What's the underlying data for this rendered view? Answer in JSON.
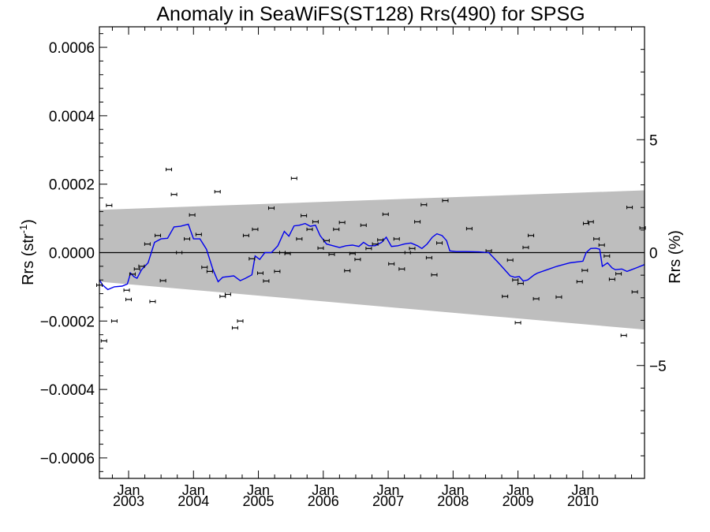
{
  "chart_data": {
    "type": "scatter",
    "title": "Anomaly in SeaWiFS(ST128) Rrs(490) for SPSG",
    "ylabel": "Rrs (str",
    "ylabel_sup": "-1",
    "ylabel_close": ")",
    "y2label": "Rrs (%)",
    "xlim": [
      2002.55,
      2010.95
    ],
    "ylim": [
      -0.00066,
      0.00066
    ],
    "y2lim": [
      -10,
      10
    ],
    "grid": false,
    "x_ticks": [
      {
        "x": 2003.0,
        "month": "Jan",
        "year": "2003"
      },
      {
        "x": 2004.0,
        "month": "Jan",
        "year": "2004"
      },
      {
        "x": 2005.0,
        "month": "Jan",
        "year": "2005"
      },
      {
        "x": 2006.0,
        "month": "Jan",
        "year": "2006"
      },
      {
        "x": 2007.0,
        "month": "Jan",
        "year": "2007"
      },
      {
        "x": 2008.0,
        "month": "Jan",
        "year": "2008"
      },
      {
        "x": 2009.0,
        "month": "Jan",
        "year": "2009"
      },
      {
        "x": 2010.0,
        "month": "Jan",
        "year": "2010"
      }
    ],
    "y_ticks": [
      {
        "v": 0.0006,
        "label": "0.0006"
      },
      {
        "v": 0.0004,
        "label": "0.0004"
      },
      {
        "v": 0.0002,
        "label": "0.0002"
      },
      {
        "v": 0.0,
        "label": "0.0000"
      },
      {
        "v": -0.0002,
        "label": "−0.0002"
      },
      {
        "v": -0.0004,
        "label": "−0.0004"
      },
      {
        "v": -0.0006,
        "label": "−0.0006"
      }
    ],
    "y2_ticks": [
      {
        "v": 5,
        "label": "5"
      },
      {
        "v": 0,
        "label": "0"
      },
      {
        "v": -5,
        "label": "−5"
      }
    ],
    "uncertainty_band": {
      "x": [
        2002.55,
        2010.95
      ],
      "upper": [
        0.000125,
        0.000182
      ],
      "lower": [
        -8.5e-05,
        -0.000225
      ],
      "color": "#bebebe"
    },
    "points": [
      [
        2002.55,
        -9.5e-05
      ],
      [
        2002.62,
        -0.000258
      ],
      [
        2002.7,
        0.000138
      ],
      [
        2002.78,
        -0.0002
      ],
      [
        2002.97,
        -0.00011
      ],
      [
        2003.0,
        -0.000137
      ],
      [
        2003.06,
        -6.3e-05
      ],
      [
        2003.13,
        -4.8e-05
      ],
      [
        2003.2,
        -4e-05
      ],
      [
        2003.29,
        2.5e-05
      ],
      [
        2003.37,
        -0.000143
      ],
      [
        2003.45,
        5e-05
      ],
      [
        2003.53,
        -8.2e-05
      ],
      [
        2003.62,
        0.000243
      ],
      [
        2003.7,
        0.00017
      ],
      [
        2003.78,
        0.0
      ],
      [
        2003.9,
        4e-05
      ],
      [
        2003.98,
        0.00011
      ],
      [
        2004.08,
        5.3e-05
      ],
      [
        2004.17,
        -4.3e-05
      ],
      [
        2004.25,
        -5.5e-05
      ],
      [
        2004.37,
        0.000178
      ],
      [
        2004.45,
        -0.000128
      ],
      [
        2004.53,
        -0.000122
      ],
      [
        2004.64,
        -0.00022
      ],
      [
        2004.72,
        -0.0002
      ],
      [
        2004.81,
        5e-05
      ],
      [
        2004.9,
        -1.8e-05
      ],
      [
        2004.95,
        6.8e-05
      ],
      [
        2005.03,
        -6e-05
      ],
      [
        2005.12,
        -8.3e-05
      ],
      [
        2005.2,
        0.00013
      ],
      [
        2005.29,
        -5.5e-05
      ],
      [
        2005.37,
        0.0
      ],
      [
        2005.45,
        -3e-06
      ],
      [
        2005.55,
        0.000217
      ],
      [
        2005.63,
        4e-05
      ],
      [
        2005.7,
        0.000108
      ],
      [
        2005.79,
        6.8e-05
      ],
      [
        2005.88,
        9e-05
      ],
      [
        2005.96,
        1.3e-05
      ],
      [
        2006.05,
        3.5e-05
      ],
      [
        2006.13,
        -5e-06
      ],
      [
        2006.2,
        6.8e-05
      ],
      [
        2006.29,
        8.8e-05
      ],
      [
        2006.37,
        -5.3e-05
      ],
      [
        2006.45,
        -3e-06
      ],
      [
        2006.53,
        -2e-05
      ],
      [
        2006.62,
        8e-05
      ],
      [
        2006.7,
        1.2e-05
      ],
      [
        2006.8,
        2.5e-05
      ],
      [
        2006.88,
        3.7e-05
      ],
      [
        2006.96,
        0.000112
      ],
      [
        2007.05,
        -3.3e-05
      ],
      [
        2007.13,
        4e-05
      ],
      [
        2007.21,
        -4.8e-05
      ],
      [
        2007.3,
        0.0
      ],
      [
        2007.37,
        1.2e-05
      ],
      [
        2007.45,
        9e-05
      ],
      [
        2007.55,
        0.00014
      ],
      [
        2007.63,
        -1.5e-05
      ],
      [
        2007.71,
        -6.5e-05
      ],
      [
        2007.79,
        2.8e-05
      ],
      [
        2007.88,
        0.000152
      ],
      [
        2008.25,
        7e-05
      ],
      [
        2008.55,
        5e-06
      ],
      [
        2008.8,
        -0.000128
      ],
      [
        2008.88,
        -2.2e-05
      ],
      [
        2008.96,
        -8e-05
      ],
      [
        2009.0,
        -0.000205
      ],
      [
        2009.04,
        -9e-05
      ],
      [
        2009.12,
        1.5e-05
      ],
      [
        2009.2,
        5e-05
      ],
      [
        2009.28,
        -0.000135
      ],
      [
        2009.63,
        -0.00013
      ],
      [
        2009.95,
        -8.5e-05
      ],
      [
        2010.03,
        -5.2e-05
      ],
      [
        2010.05,
        8.5e-05
      ],
      [
        2010.12,
        9e-05
      ],
      [
        2010.21,
        4e-05
      ],
      [
        2010.29,
        2.2e-05
      ],
      [
        2010.37,
        -1e-05
      ],
      [
        2010.45,
        -7.8e-05
      ],
      [
        2010.55,
        -6.2e-05
      ],
      [
        2010.63,
        -0.000242
      ],
      [
        2010.72,
        0.000132
      ],
      [
        2010.8,
        -0.000115
      ],
      [
        2010.92,
        7.2e-05
      ]
    ],
    "smooth_line": {
      "color": "#0000ee",
      "points": [
        [
          2002.55,
          -8e-05
        ],
        [
          2002.6,
          -9.5e-05
        ],
        [
          2002.68,
          -0.000108
        ],
        [
          2002.78,
          -0.0001
        ],
        [
          2002.9,
          -9.8e-05
        ],
        [
          2002.98,
          -9.2e-05
        ],
        [
          2003.03,
          -6e-05
        ],
        [
          2003.08,
          -7e-05
        ],
        [
          2003.13,
          -7.5e-05
        ],
        [
          2003.2,
          -5e-05
        ],
        [
          2003.3,
          -3e-05
        ],
        [
          2003.4,
          3e-05
        ],
        [
          2003.5,
          4e-05
        ],
        [
          2003.6,
          4.2e-05
        ],
        [
          2003.7,
          7.5e-05
        ],
        [
          2003.8,
          7.7e-05
        ],
        [
          2003.92,
          8.3e-05
        ],
        [
          2004.0,
          4e-05
        ],
        [
          2004.1,
          4e-05
        ],
        [
          2004.2,
          1e-05
        ],
        [
          2004.3,
          -5e-05
        ],
        [
          2004.38,
          -8.5e-05
        ],
        [
          2004.45,
          -7.2e-05
        ],
        [
          2004.53,
          -7e-05
        ],
        [
          2004.62,
          -6.8e-05
        ],
        [
          2004.72,
          -8.2e-05
        ],
        [
          2004.8,
          -7.5e-05
        ],
        [
          2004.9,
          -6.5e-05
        ],
        [
          2004.95,
          -1e-05
        ],
        [
          2005.02,
          -2e-05
        ],
        [
          2005.1,
          0.0
        ],
        [
          2005.2,
          0.0
        ],
        [
          2005.3,
          2e-05
        ],
        [
          2005.4,
          6.2e-05
        ],
        [
          2005.47,
          4.8e-05
        ],
        [
          2005.55,
          7.8e-05
        ],
        [
          2005.63,
          8e-05
        ],
        [
          2005.72,
          8.5e-05
        ],
        [
          2005.8,
          7.7e-05
        ],
        [
          2005.88,
          8e-05
        ],
        [
          2005.95,
          5e-05
        ],
        [
          2006.05,
          2.5e-05
        ],
        [
          2006.15,
          2e-05
        ],
        [
          2006.25,
          1.5e-05
        ],
        [
          2006.35,
          2e-05
        ],
        [
          2006.45,
          2.2e-05
        ],
        [
          2006.55,
          1.8e-05
        ],
        [
          2006.62,
          3e-05
        ],
        [
          2006.7,
          2e-05
        ],
        [
          2006.8,
          2e-05
        ],
        [
          2006.9,
          3e-05
        ],
        [
          2006.97,
          4.5e-05
        ],
        [
          2007.05,
          1.8e-05
        ],
        [
          2007.15,
          2e-05
        ],
        [
          2007.25,
          2.5e-05
        ],
        [
          2007.35,
          2.8e-05
        ],
        [
          2007.45,
          2e-05
        ],
        [
          2007.52,
          1.2e-05
        ],
        [
          2007.6,
          2.5e-05
        ],
        [
          2007.68,
          4.5e-05
        ],
        [
          2007.75,
          5.5e-05
        ],
        [
          2007.83,
          5e-05
        ],
        [
          2007.9,
          3.5e-05
        ],
        [
          2007.95,
          5e-06
        ],
        [
          2008.05,
          3e-06
        ],
        [
          2008.2,
          3e-06
        ],
        [
          2008.4,
          2e-06
        ],
        [
          2008.55,
          0.0
        ],
        [
          2008.7,
          -3e-05
        ],
        [
          2008.88,
          -6.8e-05
        ],
        [
          2008.95,
          -7.2e-05
        ],
        [
          2009.02,
          -7e-05
        ],
        [
          2009.08,
          -8.3e-05
        ],
        [
          2009.15,
          -8e-05
        ],
        [
          2009.25,
          -6.5e-05
        ],
        [
          2009.3,
          -6e-05
        ],
        [
          2009.45,
          -5e-05
        ],
        [
          2009.6,
          -4e-05
        ],
        [
          2009.8,
          -3e-05
        ],
        [
          2010.0,
          -2.5e-05
        ],
        [
          2010.05,
          0.0
        ],
        [
          2010.12,
          1.2e-05
        ],
        [
          2010.2,
          1.3e-05
        ],
        [
          2010.26,
          1e-05
        ],
        [
          2010.3,
          -4e-05
        ],
        [
          2010.38,
          -3e-05
        ],
        [
          2010.45,
          -4.5e-05
        ],
        [
          2010.5,
          -5e-05
        ],
        [
          2010.6,
          -4.8e-05
        ],
        [
          2010.68,
          -5.5e-05
        ],
        [
          2010.75,
          -5e-05
        ],
        [
          2010.82,
          -4.5e-05
        ],
        [
          2010.95,
          -3.5e-05
        ]
      ]
    },
    "zero_line": 0
  }
}
